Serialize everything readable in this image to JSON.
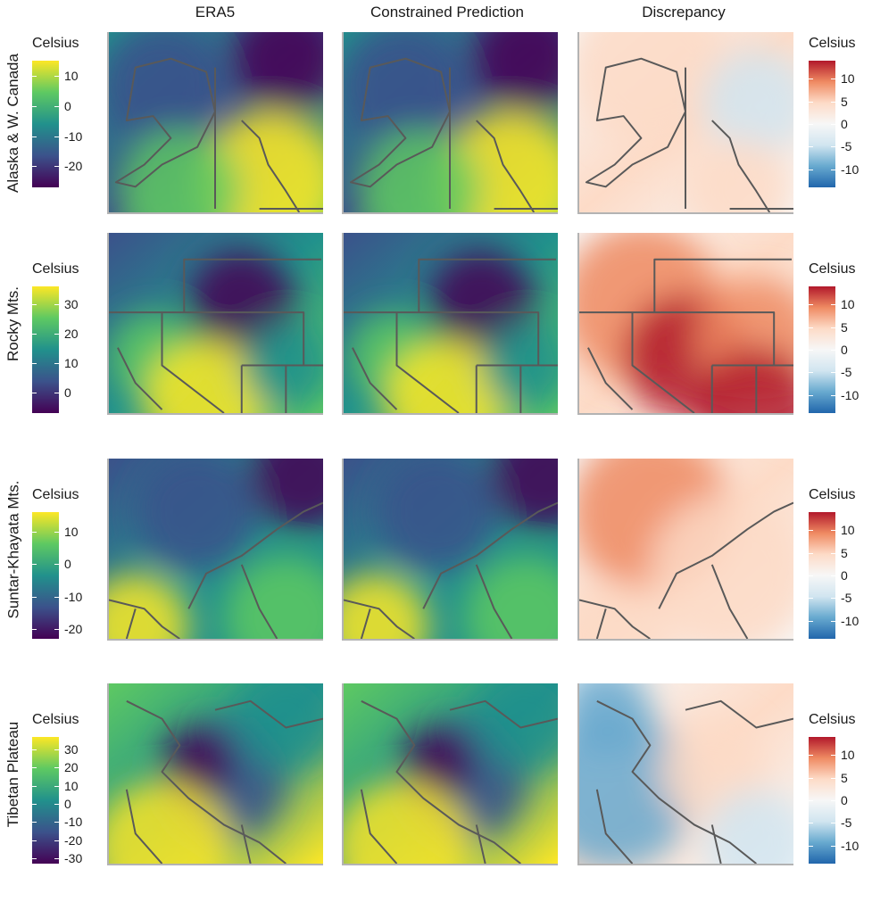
{
  "chart_data": {
    "type": "heatmap",
    "columns": [
      "ERA5",
      "Constrained Prediction",
      "Discrepancy"
    ],
    "rows": [
      {
        "label": "Alaska & W. Canada",
        "temp_legend": {
          "title": "Celsius",
          "ticks": [
            "10",
            "0",
            "-10",
            "-20"
          ],
          "range": [
            -27,
            15
          ]
        },
        "disc_legend": {
          "title": "Celsius",
          "ticks": [
            "10",
            "5",
            "0",
            "-5",
            "-10"
          ],
          "range": [
            -14,
            14
          ]
        }
      },
      {
        "label": "Rocky Mts.",
        "temp_legend": {
          "title": "Celsius",
          "ticks": [
            "30",
            "20",
            "10",
            "0"
          ],
          "range": [
            -7,
            36
          ]
        },
        "disc_legend": {
          "title": "Celsius",
          "ticks": [
            "10",
            "5",
            "0",
            "-5",
            "-10"
          ],
          "range": [
            -14,
            14
          ]
        }
      },
      {
        "label": "Suntar-Khayata Mts.",
        "temp_legend": {
          "title": "Celsius",
          "ticks": [
            "10",
            "0",
            "-10",
            "-20"
          ],
          "range": [
            -23,
            16
          ]
        },
        "disc_legend": {
          "title": "Celsius",
          "ticks": [
            "10",
            "5",
            "0",
            "-5",
            "-10"
          ],
          "range": [
            -14,
            14
          ]
        }
      },
      {
        "label": "Tibetan Plateau",
        "temp_legend": {
          "title": "Celsius",
          "ticks": [
            "30",
            "20",
            "10",
            "0",
            "-10",
            "-20",
            "-30"
          ],
          "range": [
            -33,
            37
          ]
        },
        "disc_legend": {
          "title": "Celsius",
          "ticks": [
            "10",
            "5",
            "0",
            "-5",
            "-10"
          ],
          "range": [
            -14,
            14
          ]
        }
      }
    ]
  },
  "colors": {
    "viridis": [
      "#440154",
      "#3b528b",
      "#21918c",
      "#5ec962",
      "#fde725"
    ],
    "rdbu": [
      "#b2182b",
      "#ef8a62",
      "#fddbc7",
      "#f7f7f7",
      "#d1e5f0",
      "#67a9cf",
      "#2166ac"
    ],
    "outline": "#595959",
    "axis": "#b3b3b3"
  }
}
